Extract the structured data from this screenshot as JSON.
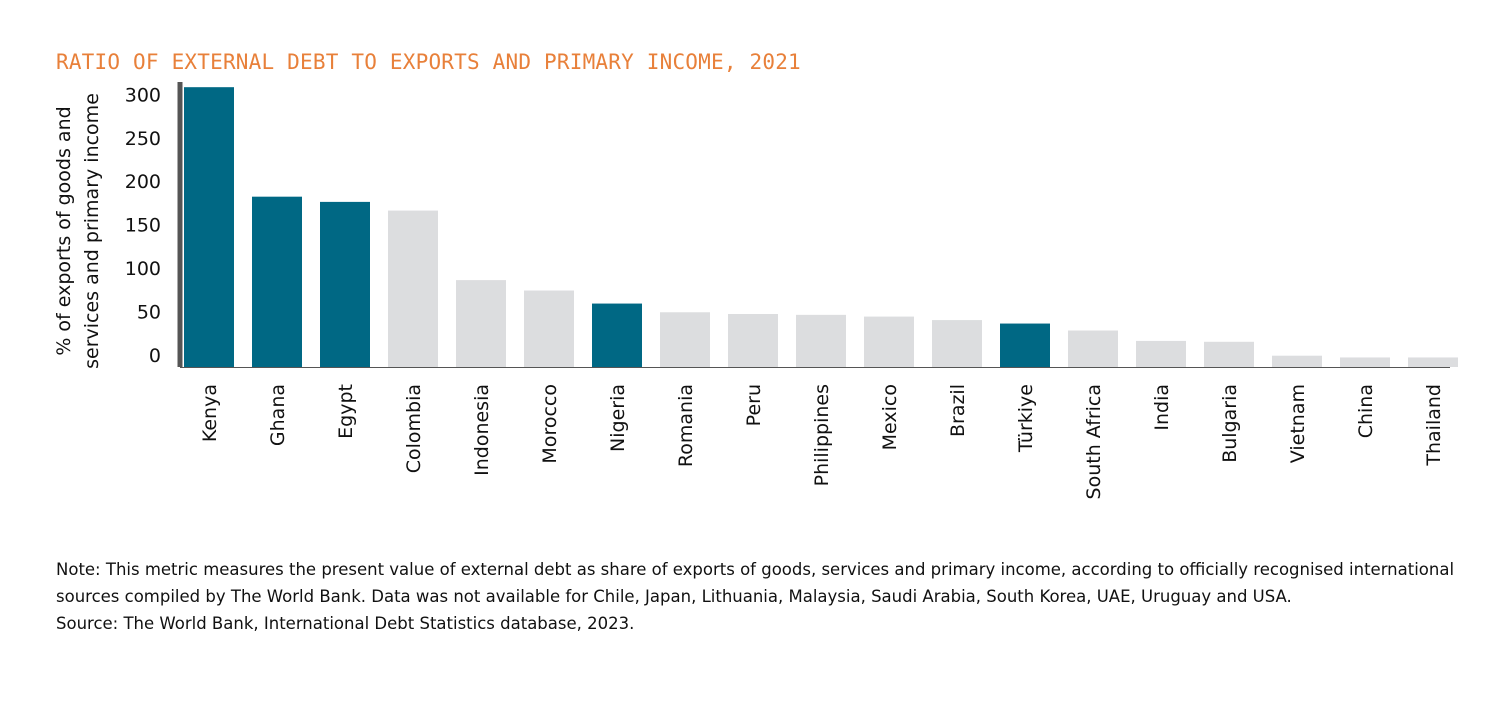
{
  "chart_data": {
    "type": "bar",
    "title": "RATIO OF EXTERNAL DEBT TO EXPORTS AND PRIMARY INCOME, 2021",
    "ylabel_lines": [
      "% of exports of goods and",
      "services and primary income"
    ],
    "xlabel": "",
    "ylim": [
      0,
      320
    ],
    "yticks": [
      0,
      50,
      100,
      150,
      200,
      250,
      300
    ],
    "grid": false,
    "categories": [
      "Kenya",
      "Ghana",
      "Egypt",
      "Colombia",
      "Indonesia",
      "Morocco",
      "Nigeria",
      "Romania",
      "Peru",
      "Philippines",
      "Mexico",
      "Brazil",
      "Türkiye",
      "South Africa",
      "India",
      "Bulgaria",
      "Vietnam",
      "China",
      "Thailand"
    ],
    "values": [
      322,
      196,
      190,
      180,
      100,
      88,
      73,
      63,
      61,
      60,
      58,
      54,
      50,
      42,
      30,
      29,
      13,
      11,
      11
    ],
    "highlighted": [
      "Kenya",
      "Ghana",
      "Egypt",
      "Nigeria",
      "Türkiye"
    ],
    "colors": {
      "highlight": "#006884",
      "default": "#dcdddf",
      "axis": "#555555"
    }
  },
  "notes": {
    "note": "Note: This metric measures the present value of external debt as share of exports of goods, services and primary income, according to officially recognised international sources compiled by The World Bank. Data was not available for Chile, Japan, Lithuania, Malaysia, Saudi Arabia, South Korea, UAE, Uruguay and USA.",
    "source": "Source: The World Bank, International Debt Statistics database, 2023."
  }
}
